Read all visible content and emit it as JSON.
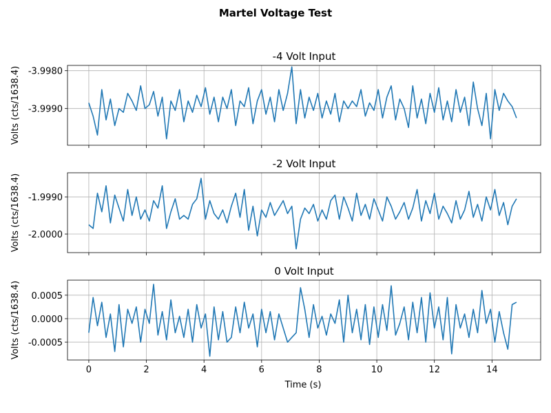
{
  "chart_data": [
    {
      "type": "line",
      "title": "-4 Volt Input",
      "xlabel": "",
      "ylabel": "Volts (cts/1638.4)",
      "xlim": [
        -0.74,
        15.69
      ],
      "ylim": [
        -3.99997,
        -3.99786
      ],
      "xticks": [
        0,
        2,
        4,
        6,
        8,
        10,
        12,
        14
      ],
      "xtick_labels_shown": false,
      "yticks": [
        -3.998,
        -3.999
      ],
      "ytick_labels": [
        "-3.9980",
        "-3.9990"
      ],
      "grid": true,
      "x_start": 0,
      "x_step": 0.15,
      "values": [
        -3.99885,
        -3.9992,
        -3.9997,
        -3.9985,
        -3.9993,
        -3.99875,
        -3.99945,
        -3.999,
        -3.9991,
        -3.9986,
        -3.9988,
        -3.99905,
        -3.9984,
        -3.999,
        -3.9989,
        -3.99855,
        -3.9992,
        -3.9987,
        -3.9998,
        -3.9988,
        -3.99905,
        -3.9985,
        -3.99935,
        -3.9988,
        -3.9991,
        -3.99865,
        -3.99895,
        -3.99845,
        -3.99915,
        -3.9987,
        -3.99935,
        -3.9987,
        -3.999,
        -3.9985,
        -3.99945,
        -3.9988,
        -3.99895,
        -3.99845,
        -3.9994,
        -3.9988,
        -3.9985,
        -3.99915,
        -3.9987,
        -3.99935,
        -3.9985,
        -3.99905,
        -3.9986,
        -3.9979,
        -3.9994,
        -3.9985,
        -3.99925,
        -3.9987,
        -3.99905,
        -3.9986,
        -3.99925,
        -3.9988,
        -3.99915,
        -3.9986,
        -3.99935,
        -3.9988,
        -3.999,
        -3.9988,
        -3.99895,
        -3.9985,
        -3.9992,
        -3.99885,
        -3.99905,
        -3.9985,
        -3.99925,
        -3.9987,
        -3.9984,
        -3.9993,
        -3.99875,
        -3.999,
        -3.9995,
        -3.9984,
        -3.99925,
        -3.99875,
        -3.9994,
        -3.9986,
        -3.9991,
        -3.99845,
        -3.9993,
        -3.9988,
        -3.99935,
        -3.9985,
        -3.9991,
        -3.9987,
        -3.99945,
        -3.9983,
        -3.999,
        -3.99945,
        -3.9986,
        -3.9998,
        -3.9985,
        -3.99905,
        -3.9986,
        -3.9988,
        -3.99895,
        -3.99925
      ]
    },
    {
      "type": "line",
      "title": "-2 Volt Input",
      "xlabel": "",
      "ylabel": "Volts (cts/1638.4)",
      "xlim": [
        -0.74,
        15.69
      ],
      "ylim": [
        -2.0005,
        -1.99835
      ],
      "xticks": [
        0,
        2,
        4,
        6,
        8,
        10,
        12,
        14
      ],
      "xtick_labels_shown": false,
      "yticks": [
        -1.999,
        -2.0
      ],
      "ytick_labels": [
        "-1.9990",
        "-2.0000"
      ],
      "grid": true,
      "x_start": 0,
      "x_step": 0.15,
      "values": [
        -1.99975,
        -1.99985,
        -1.9989,
        -1.9994,
        -1.9987,
        -1.9997,
        -1.99895,
        -1.9993,
        -1.99965,
        -1.9988,
        -1.9995,
        -1.999,
        -1.9996,
        -1.99935,
        -1.99965,
        -1.9991,
        -1.9993,
        -1.9987,
        -1.99985,
        -1.9994,
        -1.99905,
        -1.9996,
        -1.9995,
        -1.9996,
        -1.9992,
        -1.99905,
        -1.9985,
        -1.9996,
        -1.9991,
        -1.99945,
        -1.9996,
        -1.99935,
        -1.9997,
        -1.99925,
        -1.9989,
        -1.99955,
        -1.9988,
        -1.9999,
        -1.99925,
        -2.00005,
        -1.99935,
        -1.99955,
        -1.99915,
        -1.9995,
        -1.9993,
        -1.9991,
        -1.99945,
        -1.99925,
        -2.0004,
        -1.9996,
        -1.9993,
        -1.99945,
        -1.9992,
        -1.99965,
        -1.99935,
        -1.9996,
        -1.9991,
        -1.99895,
        -1.9996,
        -1.999,
        -1.9993,
        -1.99965,
        -1.9989,
        -1.9995,
        -1.9992,
        -1.9996,
        -1.99905,
        -1.99935,
        -1.99965,
        -1.999,
        -1.99925,
        -1.9996,
        -1.9994,
        -1.99915,
        -1.9996,
        -1.9993,
        -1.9988,
        -1.99965,
        -1.9991,
        -1.99945,
        -1.9989,
        -1.9996,
        -1.99925,
        -1.99945,
        -1.9997,
        -1.9991,
        -1.9996,
        -1.99935,
        -1.99885,
        -1.99955,
        -1.9992,
        -1.99965,
        -1.999,
        -1.99935,
        -1.9988,
        -1.9995,
        -1.99915,
        -1.99975,
        -1.99925,
        -1.99905
      ]
    },
    {
      "type": "line",
      "title": "0 Volt Input",
      "xlabel": "Time (s)",
      "ylabel": "Volts (cts/1638.4)",
      "xlim": [
        -0.74,
        15.69
      ],
      "ylim": [
        -0.00088,
        0.00082
      ],
      "xticks": [
        0,
        2,
        4,
        6,
        8,
        10,
        12,
        14
      ],
      "xtick_labels": [
        "0",
        "2",
        "4",
        "6",
        "8",
        "10",
        "12",
        "14"
      ],
      "yticks": [
        0.0005,
        0,
        -0.0005
      ],
      "ytick_labels": [
        "0.0005",
        "0.0000",
        "-0.0005"
      ],
      "grid": true,
      "x_start": 0,
      "x_step": 0.15,
      "values": [
        -0.0003,
        0.00045,
        -0.00015,
        0.00035,
        -0.0004,
        0.0001,
        -0.0007,
        0.0003,
        -0.0006,
        0.0002,
        -0.0001,
        0.00025,
        -0.0005,
        0.0002,
        -0.0001,
        0.00073,
        -0.00035,
        0.00015,
        -0.00045,
        0.0004,
        -0.0003,
        5e-05,
        -0.0004,
        0.0002,
        -0.0005,
        0.0003,
        -0.0002,
        0.0001,
        -0.0008,
        0.00025,
        -0.00045,
        0.00015,
        -0.0005,
        -0.0004,
        0.00025,
        -0.0003,
        0.00035,
        -0.0002,
        0.0001,
        -0.0006,
        0.0002,
        -0.0003,
        0.00015,
        -0.00045,
        0.0001,
        -0.0002,
        -0.0005,
        -0.0004,
        -0.0003,
        0.00066,
        0.0002,
        -0.0004,
        0.0003,
        -0.0002,
        5e-05,
        -0.00035,
        0.0001,
        -0.0001,
        0.0004,
        -0.0005,
        0.0005,
        -0.0003,
        0.0002,
        -0.00045,
        0.0003,
        -0.00055,
        0.00025,
        -0.0004,
        0.0003,
        -0.00025,
        0.0007,
        -0.00035,
        -0.0001,
        0.00025,
        -0.00045,
        0.00035,
        -0.0003,
        0.00045,
        -0.0005,
        0.00055,
        -0.0002,
        0.00025,
        -0.00045,
        0.00045,
        -0.00075,
        0.0003,
        -0.0002,
        0.0001,
        -0.0004,
        0.0002,
        -0.0003,
        0.0006,
        -0.0001,
        0.0002,
        -0.0005,
        0.00015,
        -0.0003,
        -0.00065,
        0.0003,
        0.00035
      ]
    }
  ],
  "figure_title": "Martel Voltage Test"
}
